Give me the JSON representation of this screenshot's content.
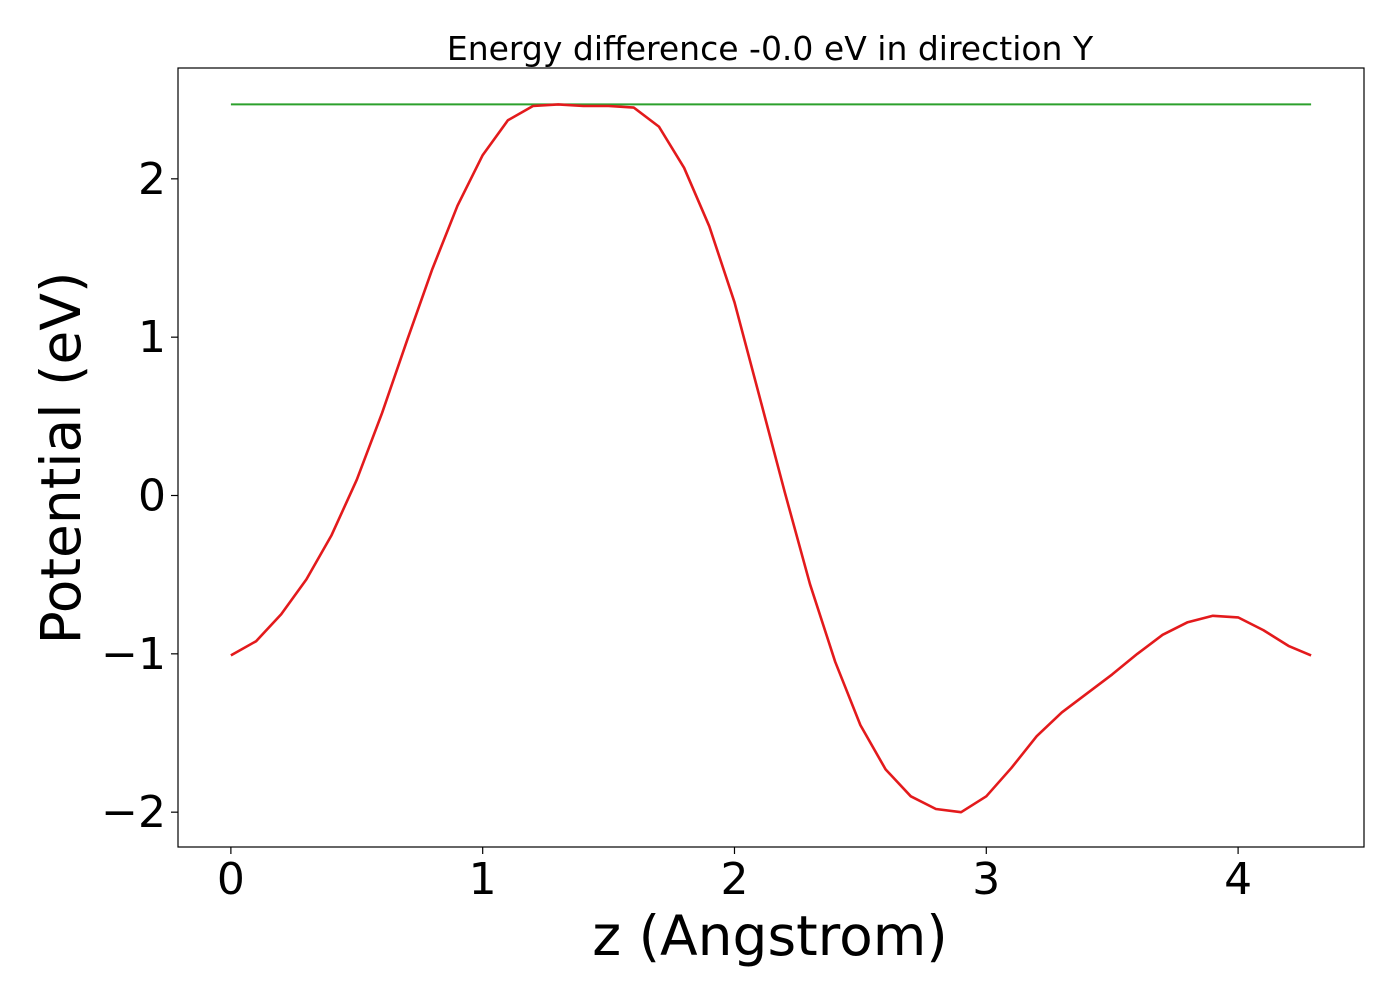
{
  "chart_data": {
    "type": "line",
    "title": "Energy difference -0.0 eV in direction Y",
    "xlabel": "z (Angstrom)",
    "ylabel": "Potential (eV)",
    "xlim": [
      -0.21,
      4.5
    ],
    "ylim": [
      -2.22,
      2.7
    ],
    "xticks": [
      0,
      1,
      2,
      3,
      4
    ],
    "xtick_labels": [
      "0",
      "1",
      "2",
      "3",
      "4"
    ],
    "yticks": [
      -2,
      -1,
      0,
      1,
      2
    ],
    "ytick_labels": [
      "−2",
      "−1",
      "0",
      "1",
      "2"
    ],
    "grid": false,
    "series": [
      {
        "color": "#2ca02c",
        "x": [
          0,
          4.29
        ],
        "y": [
          2.47,
          2.47
        ]
      },
      {
        "color": "#e31a1c",
        "x": [
          0,
          0.1,
          0.2,
          0.3,
          0.4,
          0.5,
          0.6,
          0.7,
          0.8,
          0.9,
          1.0,
          1.1,
          1.2,
          1.3,
          1.4,
          1.5,
          1.6,
          1.7,
          1.8,
          1.9,
          2.0,
          2.1,
          2.2,
          2.3,
          2.4,
          2.5,
          2.6,
          2.7,
          2.8,
          2.9,
          3.0,
          3.1,
          3.2,
          3.3,
          3.4,
          3.5,
          3.6,
          3.7,
          3.8,
          3.9,
          4.0,
          4.1,
          4.2,
          4.29
        ],
        "y": [
          -1.01,
          -0.92,
          -0.75,
          -0.53,
          -0.25,
          0.1,
          0.52,
          0.98,
          1.43,
          1.83,
          2.15,
          2.37,
          2.46,
          2.47,
          2.46,
          2.46,
          2.45,
          2.33,
          2.07,
          1.7,
          1.22,
          0.62,
          0.02,
          -0.56,
          -1.05,
          -1.45,
          -1.73,
          -1.9,
          -1.98,
          -2.0,
          -1.9,
          -1.72,
          -1.52,
          -1.37,
          -1.25,
          -1.13,
          -1.0,
          -0.88,
          -0.8,
          -0.76,
          -0.77,
          -0.85,
          -0.95,
          -1.01
        ]
      }
    ]
  }
}
